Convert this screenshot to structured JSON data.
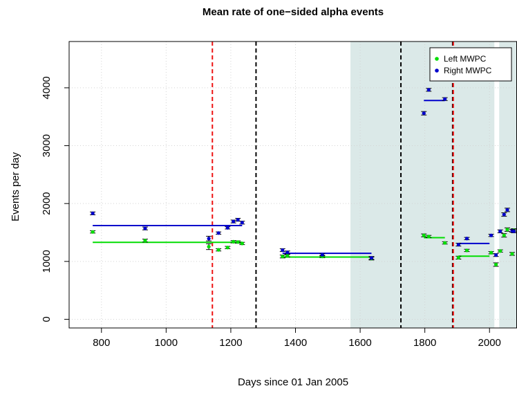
{
  "chart_data": {
    "type": "scatter",
    "title": "Mean rate of one−sided alpha events",
    "xlabel": "Days since 01 Jan 2005",
    "ylabel": "Events per day",
    "xlim": [
      700,
      2085
    ],
    "ylim": [
      -150,
      4800
    ],
    "xticks": [
      800,
      1000,
      1200,
      1400,
      1600,
      1800,
      2000
    ],
    "yticks": [
      0,
      1000,
      2000,
      3000,
      4000
    ],
    "grid": true,
    "legend_position": "top-right",
    "shaded_regions": [
      [
        1570,
        2015
      ],
      [
        2030,
        2085
      ]
    ],
    "shade_color": "#dbe9e8",
    "vlines": [
      {
        "x": 1143,
        "color": "#ee1111"
      },
      {
        "x": 1278,
        "color": "#000000"
      },
      {
        "x": 1726,
        "color": "#000000"
      },
      {
        "x": 1886,
        "color": "#000000"
      },
      {
        "x": 1888,
        "color": "#ee1111"
      }
    ],
    "series": [
      {
        "name": "Left MWPC",
        "color": "#00dd00",
        "points": [
          {
            "x": 773,
            "y": 1510,
            "err": 20
          },
          {
            "x": 935,
            "y": 1360,
            "err": 25
          },
          {
            "x": 1132,
            "y": 1255,
            "err": 50
          },
          {
            "x": 1162,
            "y": 1200,
            "err": 20
          },
          {
            "x": 1190,
            "y": 1240,
            "err": 20
          },
          {
            "x": 1208,
            "y": 1340,
            "err": 20
          },
          {
            "x": 1222,
            "y": 1335,
            "err": 20
          },
          {
            "x": 1235,
            "y": 1310,
            "err": 20
          },
          {
            "x": 1360,
            "y": 1085,
            "err": 25
          },
          {
            "x": 1375,
            "y": 1100,
            "err": 20
          },
          {
            "x": 1483,
            "y": 1085,
            "err": 20
          },
          {
            "x": 1635,
            "y": 1050,
            "err": 25
          },
          {
            "x": 1797,
            "y": 1450,
            "err": 25
          },
          {
            "x": 1812,
            "y": 1430,
            "err": 20
          },
          {
            "x": 1862,
            "y": 1320,
            "err": 20
          },
          {
            "x": 1904,
            "y": 1065,
            "err": 25
          },
          {
            "x": 1930,
            "y": 1190,
            "err": 20
          },
          {
            "x": 2005,
            "y": 1150,
            "err": 20
          },
          {
            "x": 2020,
            "y": 945,
            "err": 30
          },
          {
            "x": 2033,
            "y": 1180,
            "err": 20
          },
          {
            "x": 2045,
            "y": 1450,
            "err": 30
          },
          {
            "x": 2055,
            "y": 1550,
            "err": 30
          },
          {
            "x": 2070,
            "y": 1130,
            "err": 25
          },
          {
            "x": 2075,
            "y": 1540,
            "err": 25
          }
        ],
        "fits": [
          {
            "x1": 773,
            "x2": 1235,
            "y": 1330
          },
          {
            "x1": 1360,
            "x2": 1635,
            "y": 1075
          },
          {
            "x1": 1797,
            "x2": 1862,
            "y": 1410
          },
          {
            "x1": 1904,
            "x2": 2000,
            "y": 1090
          }
        ]
      },
      {
        "name": "Right MWPC",
        "color": "#0000cc",
        "points": [
          {
            "x": 773,
            "y": 1830,
            "err": 25
          },
          {
            "x": 935,
            "y": 1570,
            "err": 25
          },
          {
            "x": 1132,
            "y": 1395,
            "err": 40
          },
          {
            "x": 1162,
            "y": 1490,
            "err": 20
          },
          {
            "x": 1190,
            "y": 1580,
            "err": 20
          },
          {
            "x": 1208,
            "y": 1690,
            "err": 25
          },
          {
            "x": 1222,
            "y": 1720,
            "err": 25
          },
          {
            "x": 1235,
            "y": 1670,
            "err": 25
          },
          {
            "x": 1360,
            "y": 1195,
            "err": 25
          },
          {
            "x": 1375,
            "y": 1155,
            "err": 25
          },
          {
            "x": 1483,
            "y": 1115,
            "err": 20
          },
          {
            "x": 1635,
            "y": 1060,
            "err": 25
          },
          {
            "x": 1797,
            "y": 3560,
            "err": 30
          },
          {
            "x": 1812,
            "y": 3965,
            "err": 25
          },
          {
            "x": 1862,
            "y": 3805,
            "err": 25
          },
          {
            "x": 1904,
            "y": 1290,
            "err": 25
          },
          {
            "x": 1930,
            "y": 1395,
            "err": 20
          },
          {
            "x": 2005,
            "y": 1450,
            "err": 20
          },
          {
            "x": 2020,
            "y": 1110,
            "err": 25
          },
          {
            "x": 2033,
            "y": 1520,
            "err": 25
          },
          {
            "x": 2045,
            "y": 1810,
            "err": 30
          },
          {
            "x": 2055,
            "y": 1890,
            "err": 30
          },
          {
            "x": 2070,
            "y": 1530,
            "err": 25
          },
          {
            "x": 2075,
            "y": 1520,
            "err": 25
          }
        ],
        "fits": [
          {
            "x1": 773,
            "x2": 1235,
            "y": 1620
          },
          {
            "x1": 1360,
            "x2": 1635,
            "y": 1140
          },
          {
            "x1": 1797,
            "x2": 1862,
            "y": 3780
          },
          {
            "x1": 1904,
            "x2": 2000,
            "y": 1310
          }
        ]
      }
    ]
  }
}
